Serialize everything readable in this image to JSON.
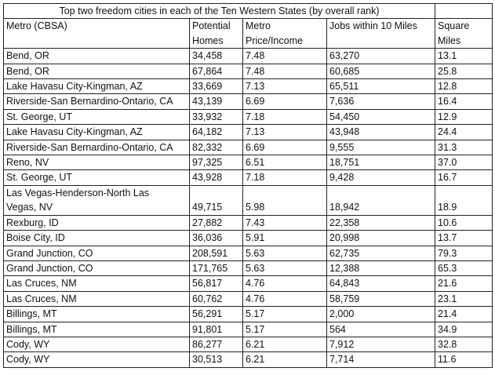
{
  "table": {
    "title": "Top two freedom cities in each of the Ten Western States (by overall rank)",
    "headers": [
      "Metro (CBSA)",
      "Potential Homes",
      "Metro Price/Income",
      "Jobs within 10 Miles",
      "Square Miles"
    ],
    "rows": [
      [
        "Bend, OR",
        "34,458",
        "7.48",
        "63,270",
        "13.1"
      ],
      [
        "Bend, OR",
        "67,864",
        "7.48",
        "60,685",
        "25.8"
      ],
      [
        "Lake Havasu City-Kingman, AZ",
        "33,669",
        "7.13",
        "65,511",
        "12.8"
      ],
      [
        "Riverside-San Bernardino-Ontario, CA",
        "43,139",
        "6.69",
        "7,636",
        "16.4"
      ],
      [
        "St. George, UT",
        "33,932",
        "7.18",
        "54,450",
        "12.9"
      ],
      [
        "Lake Havasu City-Kingman, AZ",
        "64,182",
        "7.13",
        "43,948",
        "24.4"
      ],
      [
        "Riverside-San Bernardino-Ontario, CA",
        "82,332",
        "6.69",
        "9,555",
        "31.3"
      ],
      [
        "Reno, NV",
        "97,325",
        "6.51",
        "18,751",
        "37.0"
      ],
      [
        "St. George, UT",
        "43,928",
        "7.18",
        "9,428",
        "16.7"
      ],
      [
        "Las Vegas-Henderson-North Las Vegas, NV",
        "49,715",
        "5.98",
        "18,942",
        "18.9"
      ],
      [
        "Rexburg, ID",
        "27,882",
        "7.43",
        "22,358",
        "10.6"
      ],
      [
        "Boise City, ID",
        "36,036",
        "5.91",
        "20,998",
        "13.7"
      ],
      [
        "Grand Junction, CO",
        "208,591",
        "5.63",
        "62,735",
        "79.3"
      ],
      [
        "Grand Junction, CO",
        "171,765",
        "5.63",
        "12,388",
        "65.3"
      ],
      [
        "Las Cruces, NM",
        "56,817",
        "4.76",
        "64,843",
        "21.6"
      ],
      [
        "Las Cruces, NM",
        "60,762",
        "4.76",
        "58,759",
        "23.1"
      ],
      [
        "Billings, MT",
        "56,291",
        "5.17",
        "2,000",
        "21.4"
      ],
      [
        "Billings, MT",
        "91,801",
        "5.17",
        "564",
        "34.9"
      ],
      [
        "Cody, WY",
        "86,277",
        "6.21",
        "7,912",
        "32.8"
      ],
      [
        "Cody, WY",
        "30,513",
        "6.21",
        "7,714",
        "11.6"
      ]
    ]
  }
}
